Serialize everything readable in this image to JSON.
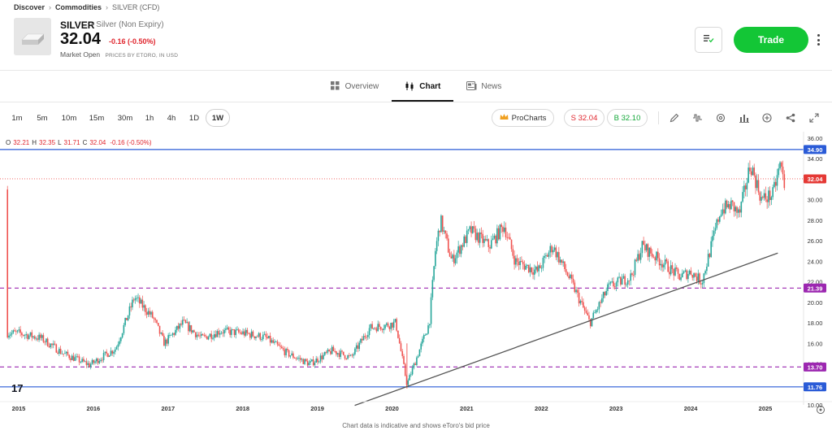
{
  "breadcrumb": [
    "Discover",
    "Commodities",
    "SILVER (CFD)"
  ],
  "instrument": {
    "symbol": "SILVER",
    "full_name": "• Silver (Non Expiry)",
    "price": "32.04",
    "change": "-0.16 (-0.50%)",
    "market_status": "Market Open",
    "price_source": "PRICES BY ETORO, IN USD"
  },
  "actions": {
    "trade_label": "Trade"
  },
  "tabs": [
    {
      "label": "Overview",
      "icon": "grid-icon"
    },
    {
      "label": "Chart",
      "icon": "candles-icon"
    },
    {
      "label": "News",
      "icon": "news-icon"
    }
  ],
  "timeframes": [
    "1m",
    "5m",
    "10m",
    "15m",
    "30m",
    "1h",
    "4h",
    "1D",
    "1W"
  ],
  "active_timeframe": "1W",
  "prochart_label": "ProCharts",
  "sell_label": "S 32.04",
  "buy_label": "B 32.10",
  "ohlc": {
    "o_label": "O",
    "o": "32.21",
    "h_label": "H",
    "h": "32.35",
    "l_label": "L",
    "l": "31.71",
    "c_label": "C",
    "c": "32.04",
    "change": "-0.16 (-0.50%)"
  },
  "tv_logo": "TradingView",
  "footer_note": "Chart data is indicative and shows eToro's bid price",
  "colors": {
    "up": "#26a69a",
    "down": "#ef5350",
    "trade": "#13c636",
    "hline": "#2a5bd7",
    "dashed": "#9c27b0",
    "trend": "#555555"
  },
  "chart_data": {
    "type": "candlestick",
    "interval": "1W",
    "x_ticks": [
      "2015",
      "2016",
      "2017",
      "2018",
      "2019",
      "2020",
      "2021",
      "2022",
      "2023",
      "2024",
      "2025"
    ],
    "y_ticks": [
      "36.00",
      "34.00",
      "32.00",
      "30.00",
      "28.00",
      "26.00",
      "24.00",
      "22.00",
      "20.00",
      "18.00",
      "16.00",
      "14.00",
      "12.00",
      "10.00"
    ],
    "ylim": [
      10,
      36
    ],
    "current_price": "32.04",
    "horizontal_lines": [
      {
        "value": "34.90",
        "style": "solid"
      },
      {
        "value": "21.39",
        "style": "dashed"
      },
      {
        "value": "13.70",
        "style": "dashed"
      },
      {
        "value": "11.76",
        "style": "solid"
      }
    ],
    "trendline": {
      "start": [
        "2019-07",
        9.95
      ],
      "end": [
        "2025-03",
        24.8
      ]
    },
    "anchors": [
      [
        2015.0,
        17.0
      ],
      [
        2015.3,
        16.5
      ],
      [
        2015.6,
        15.0
      ],
      [
        2015.95,
        13.9
      ],
      [
        2016.3,
        15.5
      ],
      [
        2016.55,
        20.5
      ],
      [
        2016.8,
        18.5
      ],
      [
        2016.95,
        16.0
      ],
      [
        2017.2,
        18.0
      ],
      [
        2017.45,
        16.5
      ],
      [
        2017.7,
        17.2
      ],
      [
        2018.0,
        17.0
      ],
      [
        2018.3,
        16.6
      ],
      [
        2018.6,
        15.0
      ],
      [
        2018.9,
        14.0
      ],
      [
        2019.2,
        15.3
      ],
      [
        2019.45,
        14.6
      ],
      [
        2019.7,
        17.5
      ],
      [
        2019.95,
        17.8
      ],
      [
        2020.05,
        18.0
      ],
      [
        2020.2,
        12.0
      ],
      [
        2020.35,
        15.0
      ],
      [
        2020.5,
        18.0
      ],
      [
        2020.58,
        25.0
      ],
      [
        2020.65,
        28.0
      ],
      [
        2020.8,
        24.0
      ],
      [
        2021.05,
        27.0
      ],
      [
        2021.3,
        25.5
      ],
      [
        2021.5,
        27.5
      ],
      [
        2021.65,
        24.0
      ],
      [
        2021.95,
        23.0
      ],
      [
        2022.15,
        25.5
      ],
      [
        2022.4,
        22.0
      ],
      [
        2022.65,
        18.0
      ],
      [
        2022.9,
        21.5
      ],
      [
        2023.2,
        22.5
      ],
      [
        2023.35,
        25.5
      ],
      [
        2023.6,
        24.0
      ],
      [
        2023.85,
        22.5
      ],
      [
        2024.0,
        23.0
      ],
      [
        2024.15,
        22.0
      ],
      [
        2024.4,
        29.0
      ],
      [
        2024.55,
        29.5
      ],
      [
        2024.65,
        28.5
      ],
      [
        2024.8,
        33.5
      ],
      [
        2024.95,
        30.0
      ],
      [
        2025.1,
        30.5
      ],
      [
        2025.2,
        33.5
      ],
      [
        2025.27,
        31.0
      ]
    ]
  }
}
